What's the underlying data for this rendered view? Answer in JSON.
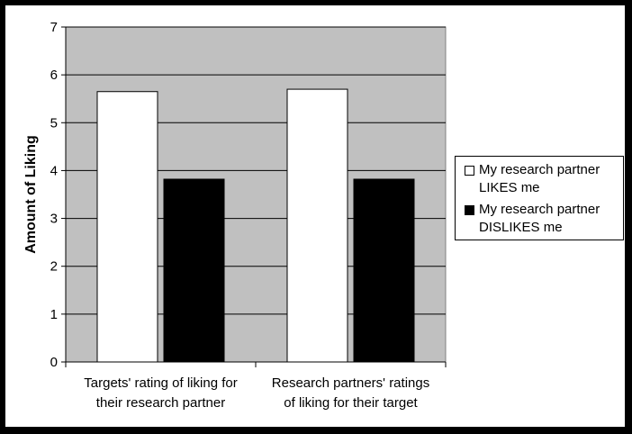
{
  "chart_data": {
    "type": "bar",
    "ylabel": "Amount of Liking",
    "ylim": [
      0,
      7
    ],
    "yticks": [
      "0",
      "1",
      "2",
      "3",
      "4",
      "5",
      "6",
      "7"
    ],
    "categories": [
      [
        "Targets' rating of liking for",
        "their research partner"
      ],
      [
        "Research partners' ratings",
        "of liking for their target"
      ]
    ],
    "series": [
      {
        "name": [
          "My research partner",
          "LIKES me"
        ],
        "color": "#ffffff",
        "values": [
          5.65,
          5.7
        ]
      },
      {
        "name": [
          "My research partner",
          "DISLIKES me"
        ],
        "color": "#000000",
        "values": [
          3.82,
          3.82
        ]
      }
    ],
    "plot_background": "#c0c0c0",
    "grid": true,
    "legend_position": "right"
  }
}
